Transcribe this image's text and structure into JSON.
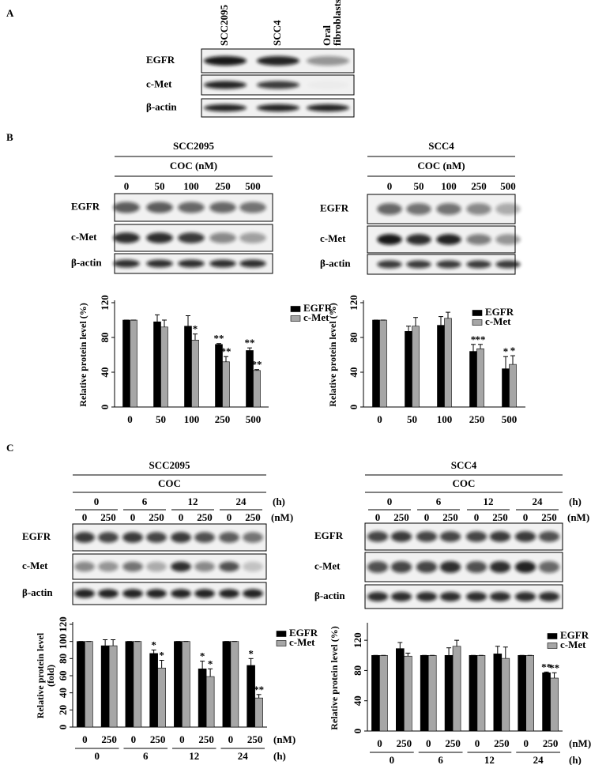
{
  "panels": {
    "A": {
      "label": "A",
      "lanes": [
        "SCC2095",
        "SCC4",
        "Oral fibroblasts"
      ],
      "rows": [
        "EGFR",
        "c-Met",
        "β-actin"
      ]
    },
    "B": {
      "label": "B",
      "blots": [
        {
          "title": "SCC2095",
          "treatment": "COC (nM)",
          "lanes": [
            "0",
            "50",
            "100",
            "250",
            "500"
          ],
          "rows": [
            "EGFR",
            "c-Met",
            "β-actin"
          ]
        },
        {
          "title": "SCC4",
          "treatment": "COC (nM)",
          "lanes": [
            "0",
            "50",
            "100",
            "250",
            "500"
          ],
          "rows": [
            "EGFR",
            "c-Met",
            "β-actin"
          ]
        }
      ]
    },
    "C": {
      "label": "C",
      "blots": [
        {
          "title": "SCC2095",
          "treatment": "COC",
          "times": [
            "0",
            "6",
            "12",
            "24"
          ],
          "time_unit": "(h)",
          "doses": [
            "0",
            "250"
          ],
          "dose_unit": "(nM)",
          "rows": [
            "EGFR",
            "c-Met",
            "β-actin"
          ]
        },
        {
          "title": "SCC4",
          "treatment": "COC",
          "times": [
            "0",
            "6",
            "12",
            "24"
          ],
          "time_unit": "(h)",
          "doses": [
            "0",
            "250"
          ],
          "dose_unit": "(nM)",
          "rows": [
            "EGFR",
            "c-Met",
            "β-actin"
          ]
        }
      ]
    }
  },
  "chart_data": [
    {
      "type": "bar",
      "y_label": "Relative protein level (%)",
      "categories": [
        "0",
        "50",
        "100",
        "250",
        "500"
      ],
      "ylim": [
        0,
        120
      ],
      "yticks": [
        0,
        40,
        80,
        120
      ],
      "series": [
        {
          "name": "EGFR",
          "color": "#000000",
          "values": [
            100,
            98,
            93,
            72,
            65
          ],
          "errors": [
            0,
            8,
            12,
            1,
            3
          ],
          "stars": [
            null,
            null,
            null,
            "**",
            "**"
          ]
        },
        {
          "name": "c-Met",
          "color": "#a6a6a6",
          "values": [
            100,
            92,
            77,
            52,
            42
          ],
          "errors": [
            0,
            8,
            7,
            6,
            1
          ],
          "stars": [
            null,
            null,
            "*",
            "**",
            "**"
          ]
        }
      ]
    },
    {
      "type": "bar",
      "y_label": "Relative protein level (%)",
      "categories": [
        "0",
        "50",
        "100",
        "250",
        "500"
      ],
      "ylim": [
        0,
        120
      ],
      "yticks": [
        0,
        40,
        80,
        120
      ],
      "series": [
        {
          "name": "EGFR",
          "color": "#000000",
          "values": [
            100,
            87,
            94,
            64,
            44
          ],
          "errors": [
            0,
            6,
            10,
            8,
            14
          ],
          "stars": [
            null,
            null,
            null,
            "*",
            "*"
          ]
        },
        {
          "name": "c-Met",
          "color": "#a6a6a6",
          "values": [
            100,
            93,
            102,
            67,
            49
          ],
          "errors": [
            0,
            10,
            7,
            5,
            10
          ],
          "stars": [
            null,
            null,
            null,
            "**",
            "*"
          ]
        }
      ]
    },
    {
      "type": "bar",
      "y_label": "Relative protein level (fold)",
      "categories": [
        "0",
        "250",
        "0",
        "250",
        "0",
        "250",
        "0",
        "250"
      ],
      "x_unit": "(nM)",
      "groups": [
        "0",
        "6",
        "12",
        "24"
      ],
      "group_unit": "(h)",
      "ylim": [
        0,
        120
      ],
      "yticks": [
        0,
        20,
        40,
        60,
        80,
        100,
        120
      ],
      "series": [
        {
          "name": "EGFR",
          "color": "#000000",
          "values": [
            100,
            95,
            100,
            86,
            100,
            68,
            100,
            72
          ],
          "errors": [
            0,
            7,
            0,
            4,
            0,
            9,
            0,
            8
          ],
          "stars": [
            null,
            null,
            null,
            "*",
            null,
            "*",
            null,
            "*"
          ]
        },
        {
          "name": "c-Met",
          "color": "#a6a6a6",
          "values": [
            100,
            95,
            100,
            69,
            100,
            59,
            100,
            34
          ],
          "errors": [
            0,
            7,
            0,
            9,
            0,
            9,
            0,
            4
          ],
          "stars": [
            null,
            null,
            null,
            "*",
            null,
            "*",
            null,
            "**"
          ]
        }
      ]
    },
    {
      "type": "bar",
      "y_label": "Relative protein level (%)",
      "categories": [
        "0",
        "250",
        "0",
        "250",
        "0",
        "250",
        "0",
        "250"
      ],
      "x_unit": "(nM)",
      "groups": [
        "0",
        "6",
        "12",
        "24"
      ],
      "group_unit": "(h)",
      "ylim": [
        0,
        140
      ],
      "yticks": [
        0,
        40,
        80,
        120
      ],
      "series": [
        {
          "name": "EGFR",
          "color": "#000000",
          "values": [
            100,
            109,
            100,
            100,
            100,
            102,
            100,
            77
          ],
          "errors": [
            0,
            8,
            0,
            10,
            0,
            10,
            0,
            1
          ],
          "stars": [
            null,
            null,
            null,
            null,
            null,
            null,
            null,
            "**"
          ]
        },
        {
          "name": "c-Met",
          "color": "#a6a6a6",
          "values": [
            100,
            99,
            100,
            112,
            100,
            96,
            100,
            70
          ],
          "errors": [
            0,
            4,
            0,
            8,
            0,
            15,
            0,
            7
          ],
          "stars": [
            null,
            null,
            null,
            null,
            null,
            null,
            null,
            "**"
          ]
        }
      ]
    }
  ]
}
